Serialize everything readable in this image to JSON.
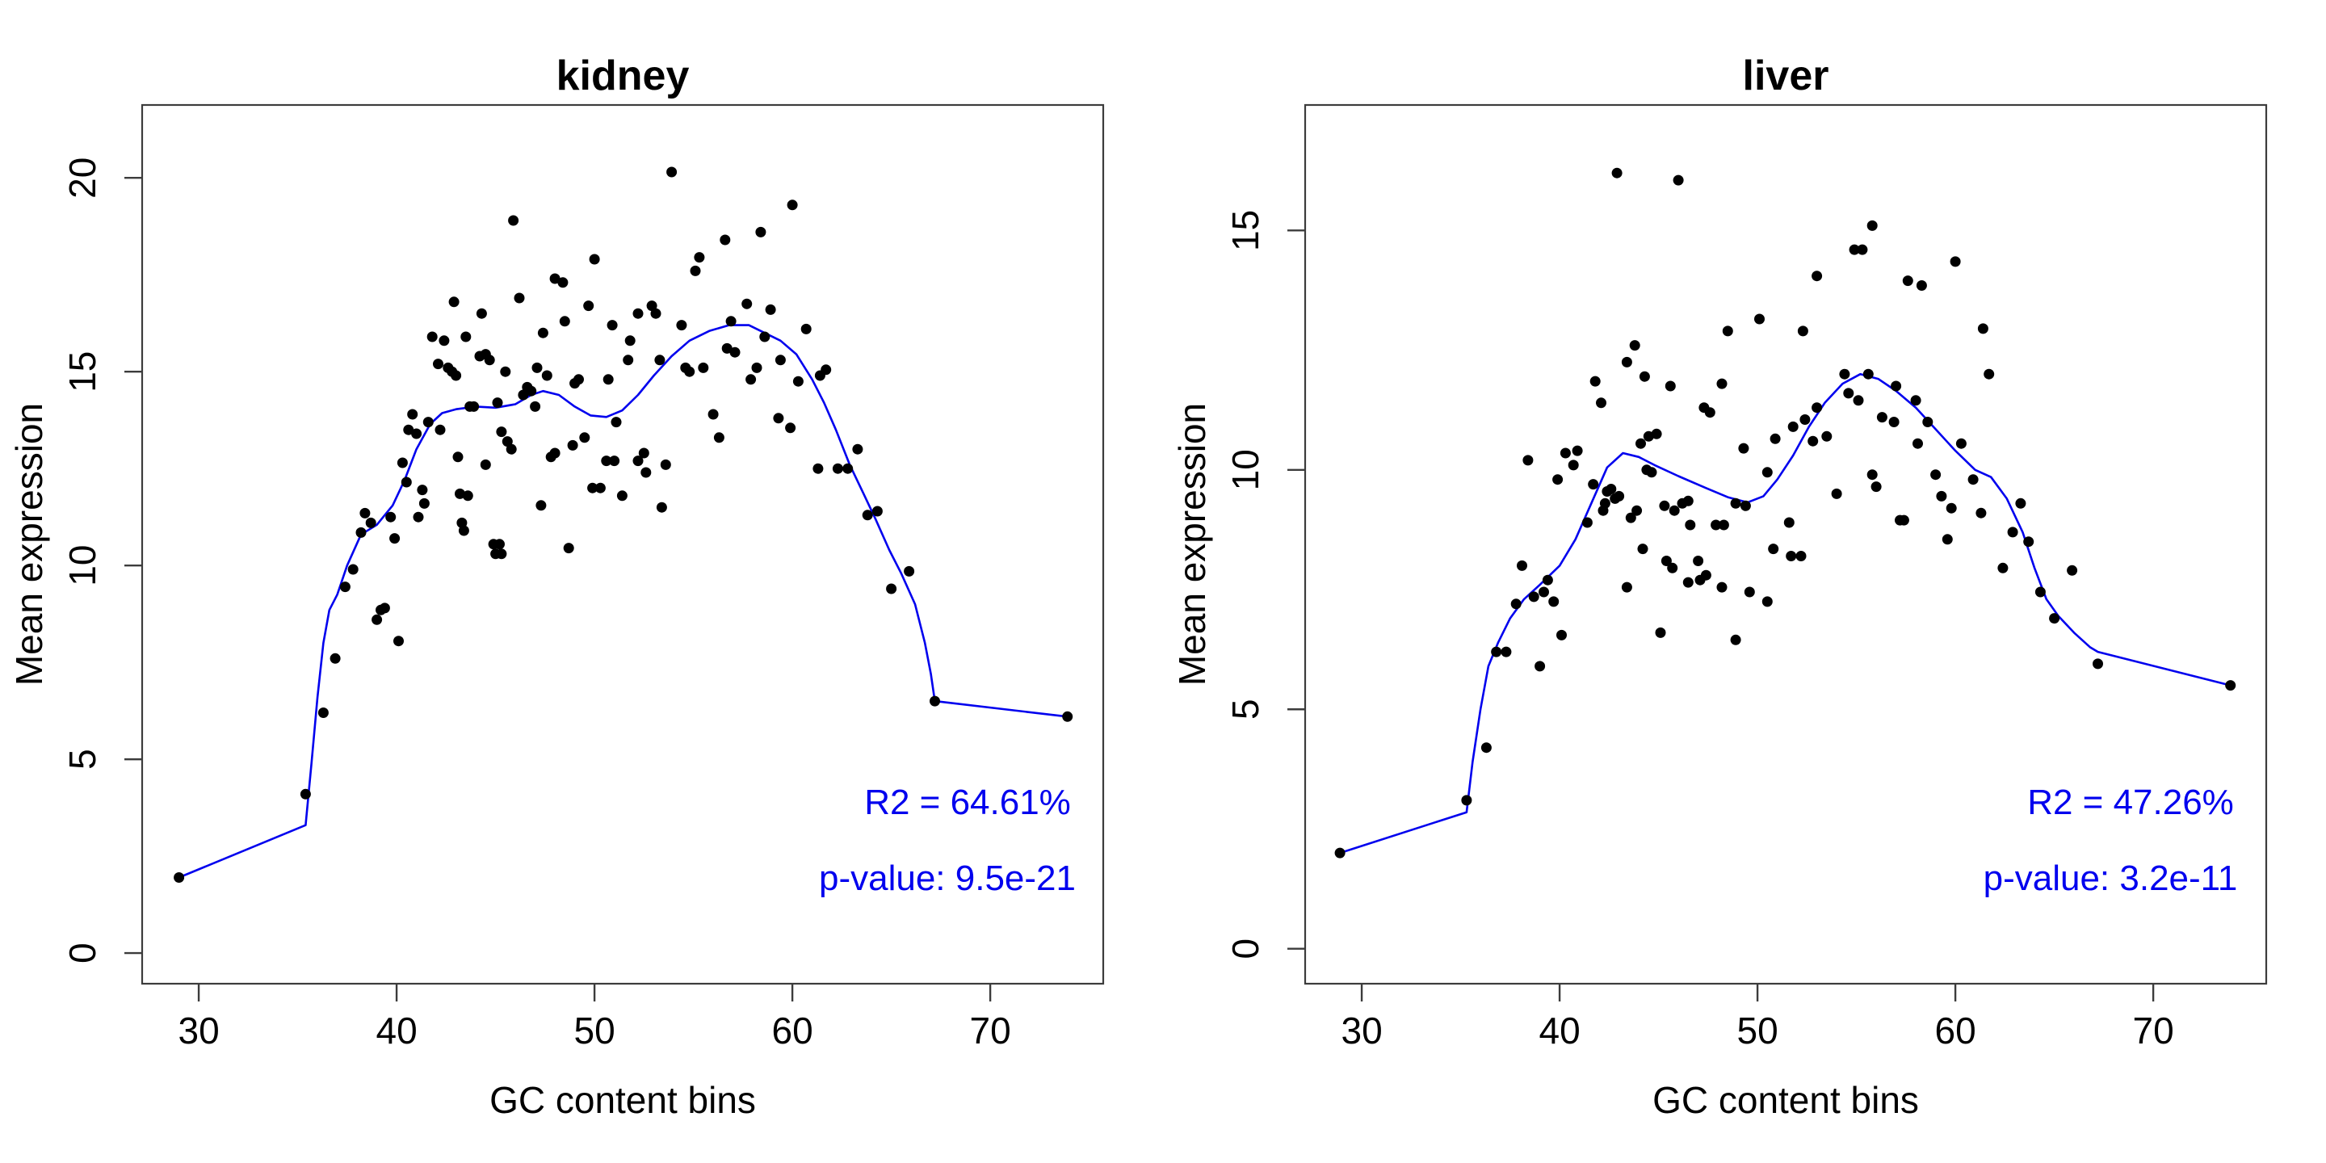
{
  "colors": {
    "point": "#000000",
    "curve": "#0000ee",
    "annotation": "#0000ee",
    "axis": "#3c3c3c",
    "text": "#000000",
    "background": "#ffffff"
  },
  "chart_data": [
    {
      "type": "scatter",
      "title": "kidney",
      "xlabel": "GC content bins",
      "ylabel": "Mean expression",
      "xlim": [
        27.14,
        75.71
      ],
      "ylim": [
        -0.79,
        21.88
      ],
      "x_ticks": [
        30,
        40,
        50,
        60,
        70
      ],
      "y_ticks": [
        0,
        5,
        10,
        15,
        20
      ],
      "grid": false,
      "legend": "none",
      "annotations": {
        "r2_label": "R2 = 64.61%",
        "p_value_label": "p-value: 9.5e-21"
      },
      "points": [
        [
          29,
          1.95
        ],
        [
          35.4,
          4.1
        ],
        [
          36.3,
          6.2
        ],
        [
          36.9,
          7.6
        ],
        [
          37.4,
          9.45
        ],
        [
          37.8,
          9.9
        ],
        [
          38.2,
          10.85
        ],
        [
          38.4,
          11.35
        ],
        [
          38.7,
          11.1
        ],
        [
          39.0,
          8.6
        ],
        [
          39.2,
          8.85
        ],
        [
          39.4,
          8.9
        ],
        [
          39.7,
          11.25
        ],
        [
          39.9,
          10.7
        ],
        [
          40.1,
          8.05
        ],
        [
          40.3,
          12.65
        ],
        [
          40.5,
          12.15
        ],
        [
          40.6,
          13.5
        ],
        [
          41.0,
          13.4
        ],
        [
          40.8,
          13.9
        ],
        [
          41.1,
          11.25
        ],
        [
          41.3,
          11.95
        ],
        [
          41.4,
          11.6
        ],
        [
          41.6,
          13.7
        ],
        [
          41.8,
          15.9
        ],
        [
          42.1,
          15.2
        ],
        [
          42.2,
          13.5
        ],
        [
          42.4,
          15.8
        ],
        [
          42.6,
          15.1
        ],
        [
          42.8,
          15.0
        ],
        [
          43.0,
          14.9
        ],
        [
          42.9,
          16.8
        ],
        [
          43.1,
          12.8
        ],
        [
          43.2,
          11.85
        ],
        [
          43.3,
          11.1
        ],
        [
          43.4,
          10.9
        ],
        [
          43.6,
          11.8
        ],
        [
          43.5,
          15.9
        ],
        [
          43.7,
          14.1
        ],
        [
          43.9,
          14.1
        ],
        [
          44.2,
          15.4
        ],
        [
          44.5,
          15.45
        ],
        [
          44.7,
          15.3
        ],
        [
          44.3,
          16.5
        ],
        [
          44.5,
          12.6
        ],
        [
          44.9,
          10.55
        ],
        [
          45.2,
          10.55
        ],
        [
          45.0,
          10.3
        ],
        [
          45.3,
          10.3
        ],
        [
          45.1,
          14.2
        ],
        [
          45.3,
          13.45
        ],
        [
          45.5,
          15.0
        ],
        [
          45.6,
          13.2
        ],
        [
          45.8,
          13.0
        ],
        [
          45.9,
          18.9
        ],
        [
          46.2,
          16.9
        ],
        [
          46.4,
          14.4
        ],
        [
          46.6,
          14.6
        ],
        [
          46.8,
          14.5
        ],
        [
          47.0,
          14.1
        ],
        [
          47.1,
          15.1
        ],
        [
          47.3,
          11.55
        ],
        [
          47.4,
          16.0
        ],
        [
          47.6,
          14.9
        ],
        [
          47.8,
          12.8
        ],
        [
          48.0,
          12.9
        ],
        [
          48.0,
          17.4
        ],
        [
          48.4,
          17.3
        ],
        [
          48.5,
          16.3
        ],
        [
          48.7,
          10.45
        ],
        [
          48.9,
          13.1
        ],
        [
          49.0,
          14.7
        ],
        [
          49.2,
          14.8
        ],
        [
          49.5,
          13.3
        ],
        [
          49.7,
          16.7
        ],
        [
          49.9,
          12.0
        ],
        [
          50.0,
          17.9
        ],
        [
          50.3,
          12.0
        ],
        [
          50.6,
          12.7
        ],
        [
          50.7,
          14.8
        ],
        [
          50.9,
          16.2
        ],
        [
          51.0,
          12.7
        ],
        [
          51.1,
          13.7
        ],
        [
          51.4,
          11.8
        ],
        [
          51.7,
          15.3
        ],
        [
          51.8,
          15.8
        ],
        [
          52.2,
          12.7
        ],
        [
          52.2,
          16.5
        ],
        [
          52.5,
          12.9
        ],
        [
          52.6,
          12.4
        ],
        [
          52.9,
          16.7
        ],
        [
          53.1,
          16.5
        ],
        [
          53.3,
          15.3
        ],
        [
          53.4,
          11.5
        ],
        [
          53.6,
          12.6
        ],
        [
          53.9,
          20.15
        ],
        [
          54.4,
          16.2
        ],
        [
          54.6,
          15.1
        ],
        [
          54.8,
          15.0
        ],
        [
          55.1,
          17.6
        ],
        [
          55.3,
          17.95
        ],
        [
          55.5,
          15.1
        ],
        [
          56.0,
          13.9
        ],
        [
          56.3,
          13.3
        ],
        [
          56.6,
          18.4
        ],
        [
          56.7,
          15.6
        ],
        [
          56.9,
          16.3
        ],
        [
          57.1,
          15.5
        ],
        [
          57.7,
          16.75
        ],
        [
          57.9,
          14.8
        ],
        [
          58.2,
          15.1
        ],
        [
          58.4,
          18.6
        ],
        [
          58.6,
          15.9
        ],
        [
          58.9,
          16.6
        ],
        [
          59.3,
          13.8
        ],
        [
          59.4,
          15.3
        ],
        [
          59.9,
          13.55
        ],
        [
          60.0,
          19.3
        ],
        [
          60.3,
          14.75
        ],
        [
          60.7,
          16.1
        ],
        [
          61.3,
          12.5
        ],
        [
          61.4,
          14.9
        ],
        [
          61.7,
          15.05
        ],
        [
          62.3,
          12.5
        ],
        [
          62.8,
          12.5
        ],
        [
          63.3,
          13.0
        ],
        [
          63.8,
          11.3
        ],
        [
          64.3,
          11.4
        ],
        [
          65.0,
          9.4
        ],
        [
          65.9,
          9.85
        ],
        [
          67.2,
          6.5
        ],
        [
          73.9,
          6.1
        ]
      ],
      "curve": [
        [
          29,
          1.95
        ],
        [
          35.4,
          3.3
        ],
        [
          35.7,
          4.9
        ],
        [
          36.0,
          6.6
        ],
        [
          36.3,
          8.0
        ],
        [
          36.6,
          8.85
        ],
        [
          37.0,
          9.25
        ],
        [
          37.5,
          10.0
        ],
        [
          38.2,
          10.8
        ],
        [
          39.0,
          11.05
        ],
        [
          39.8,
          11.55
        ],
        [
          40.4,
          12.2
        ],
        [
          41.0,
          13.0
        ],
        [
          41.7,
          13.65
        ],
        [
          42.3,
          13.93
        ],
        [
          43.0,
          14.03
        ],
        [
          44.0,
          14.1
        ],
        [
          45.0,
          14.07
        ],
        [
          46.0,
          14.16
        ],
        [
          46.8,
          14.4
        ],
        [
          47.4,
          14.5
        ],
        [
          48.2,
          14.4
        ],
        [
          49.0,
          14.1
        ],
        [
          49.8,
          13.87
        ],
        [
          50.6,
          13.83
        ],
        [
          51.4,
          14.0
        ],
        [
          52.2,
          14.4
        ],
        [
          53.0,
          14.9
        ],
        [
          53.9,
          15.4
        ],
        [
          54.8,
          15.8
        ],
        [
          55.8,
          16.05
        ],
        [
          56.8,
          16.2
        ],
        [
          57.8,
          16.2
        ],
        [
          58.6,
          16.0
        ],
        [
          59.4,
          15.8
        ],
        [
          60.2,
          15.45
        ],
        [
          61.0,
          14.8
        ],
        [
          61.6,
          14.2
        ],
        [
          62.2,
          13.5
        ],
        [
          62.9,
          12.6
        ],
        [
          63.6,
          11.85
        ],
        [
          64.2,
          11.2
        ],
        [
          64.9,
          10.4
        ],
        [
          65.5,
          9.8
        ],
        [
          66.2,
          9.0
        ],
        [
          66.7,
          8.0
        ],
        [
          67.0,
          7.2
        ],
        [
          67.2,
          6.5
        ],
        [
          73.9,
          6.1
        ]
      ]
    },
    {
      "type": "scatter",
      "title": "liver",
      "xlabel": "GC content bins",
      "ylabel": "Mean expression",
      "xlim": [
        27.14,
        75.71
      ],
      "ylim": [
        -0.73,
        17.62
      ],
      "x_ticks": [
        30,
        40,
        50,
        60,
        70
      ],
      "y_ticks": [
        0,
        5,
        10,
        15
      ],
      "grid": false,
      "legend": "none",
      "annotations": {
        "r2_label": "R2 = 47.26%",
        "p_value_label": "p-value: 3.2e-11"
      },
      "points": [
        [
          28.9,
          2.0
        ],
        [
          35.3,
          3.1
        ],
        [
          36.3,
          4.2
        ],
        [
          36.8,
          6.2
        ],
        [
          37.3,
          6.2
        ],
        [
          37.8,
          7.2
        ],
        [
          38.1,
          8.0
        ],
        [
          38.7,
          7.35
        ],
        [
          39.0,
          5.9
        ],
        [
          39.2,
          7.45
        ],
        [
          39.4,
          7.7
        ],
        [
          39.7,
          7.25
        ],
        [
          40.1,
          6.55
        ],
        [
          43.4,
          7.55
        ],
        [
          44.2,
          8.35
        ],
        [
          45.1,
          6.6
        ],
        [
          45.4,
          8.1
        ],
        [
          45.7,
          7.95
        ],
        [
          46.5,
          7.65
        ],
        [
          47.0,
          8.1
        ],
        [
          47.1,
          7.7
        ],
        [
          47.4,
          7.8
        ],
        [
          48.2,
          7.55
        ],
        [
          48.9,
          6.45
        ],
        [
          49.6,
          7.45
        ],
        [
          50.5,
          7.25
        ],
        [
          50.8,
          8.35
        ],
        [
          51.7,
          8.2
        ],
        [
          52.2,
          8.2
        ],
        [
          38.4,
          10.2
        ],
        [
          39.9,
          9.8
        ],
        [
          40.3,
          10.35
        ],
        [
          40.7,
          10.1
        ],
        [
          40.9,
          10.4
        ],
        [
          41.4,
          8.9
        ],
        [
          41.7,
          9.7
        ],
        [
          41.8,
          11.85
        ],
        [
          42.1,
          11.4
        ],
        [
          42.3,
          9.3
        ],
        [
          42.4,
          9.55
        ],
        [
          42.6,
          9.6
        ],
        [
          42.8,
          9.4
        ],
        [
          42.2,
          9.15
        ],
        [
          43.0,
          9.45
        ],
        [
          43.6,
          9.0
        ],
        [
          43.9,
          9.15
        ],
        [
          44.4,
          10.0
        ],
        [
          44.65,
          9.95
        ],
        [
          44.1,
          10.55
        ],
        [
          44.5,
          10.7
        ],
        [
          44.9,
          10.75
        ],
        [
          45.3,
          9.25
        ],
        [
          45.8,
          9.15
        ],
        [
          46.2,
          9.3
        ],
        [
          46.5,
          9.35
        ],
        [
          46.6,
          8.85
        ],
        [
          47.9,
          8.85
        ],
        [
          48.3,
          8.85
        ],
        [
          48.9,
          9.3
        ],
        [
          49.4,
          9.25
        ],
        [
          50.5,
          9.95
        ],
        [
          51.6,
          8.9
        ],
        [
          51.8,
          10.9
        ],
        [
          52.4,
          11.05
        ],
        [
          52.8,
          10.6
        ],
        [
          53.5,
          10.7
        ],
        [
          54.0,
          9.5
        ],
        [
          55.8,
          9.9
        ],
        [
          56.0,
          9.65
        ],
        [
          57.2,
          8.95
        ],
        [
          42.9,
          16.2
        ],
        [
          46.0,
          16.05
        ],
        [
          43.8,
          12.6
        ],
        [
          43.4,
          12.25
        ],
        [
          44.3,
          11.95
        ],
        [
          45.6,
          11.75
        ],
        [
          47.3,
          11.3
        ],
        [
          47.6,
          11.2
        ],
        [
          48.2,
          11.8
        ],
        [
          48.5,
          12.9
        ],
        [
          49.3,
          10.45
        ],
        [
          50.1,
          13.15
        ],
        [
          50.9,
          10.65
        ],
        [
          53.0,
          11.3
        ],
        [
          52.3,
          12.9
        ],
        [
          53.0,
          14.05
        ],
        [
          54.4,
          12.0
        ],
        [
          54.6,
          11.6
        ],
        [
          54.9,
          14.6
        ],
        [
          55.1,
          11.45
        ],
        [
          55.3,
          14.6
        ],
        [
          55.6,
          12.0
        ],
        [
          55.8,
          15.1
        ],
        [
          56.3,
          11.1
        ],
        [
          56.9,
          11.0
        ],
        [
          57.0,
          11.75
        ],
        [
          57.4,
          8.95
        ],
        [
          57.6,
          13.95
        ],
        [
          58.0,
          11.45
        ],
        [
          58.1,
          10.55
        ],
        [
          58.3,
          13.85
        ],
        [
          58.6,
          11.0
        ],
        [
          59.0,
          9.9
        ],
        [
          59.3,
          9.45
        ],
        [
          59.6,
          8.55
        ],
        [
          59.8,
          9.2
        ],
        [
          60.0,
          14.35
        ],
        [
          60.3,
          10.55
        ],
        [
          60.9,
          9.8
        ],
        [
          61.3,
          9.1
        ],
        [
          61.4,
          12.95
        ],
        [
          61.7,
          12.0
        ],
        [
          62.4,
          7.95
        ],
        [
          62.9,
          8.7
        ],
        [
          63.3,
          9.3
        ],
        [
          63.7,
          8.5
        ],
        [
          64.3,
          7.45
        ],
        [
          65.0,
          6.9
        ],
        [
          65.9,
          7.9
        ],
        [
          67.2,
          5.95
        ],
        [
          73.9,
          5.5
        ]
      ],
      "curve": [
        [
          28.9,
          2.0
        ],
        [
          35.3,
          2.85
        ],
        [
          35.6,
          3.9
        ],
        [
          36.0,
          5.0
        ],
        [
          36.4,
          5.9
        ],
        [
          36.9,
          6.4
        ],
        [
          37.5,
          6.9
        ],
        [
          38.2,
          7.3
        ],
        [
          39.0,
          7.6
        ],
        [
          40.0,
          8.0
        ],
        [
          40.8,
          8.55
        ],
        [
          41.6,
          9.3
        ],
        [
          42.4,
          10.05
        ],
        [
          43.2,
          10.35
        ],
        [
          44.0,
          10.27
        ],
        [
          44.8,
          10.1
        ],
        [
          46.0,
          9.87
        ],
        [
          47.4,
          9.62
        ],
        [
          48.5,
          9.43
        ],
        [
          49.5,
          9.32
        ],
        [
          50.3,
          9.45
        ],
        [
          51.0,
          9.8
        ],
        [
          51.8,
          10.3
        ],
        [
          52.6,
          10.9
        ],
        [
          53.4,
          11.4
        ],
        [
          54.3,
          11.8
        ],
        [
          55.2,
          12.0
        ],
        [
          56.1,
          11.9
        ],
        [
          57.0,
          11.65
        ],
        [
          58.0,
          11.3
        ],
        [
          59.0,
          10.85
        ],
        [
          60.0,
          10.4
        ],
        [
          61.0,
          10.0
        ],
        [
          61.8,
          9.85
        ],
        [
          62.6,
          9.4
        ],
        [
          63.4,
          8.7
        ],
        [
          64.0,
          7.95
        ],
        [
          64.6,
          7.3
        ],
        [
          65.2,
          6.95
        ],
        [
          66.0,
          6.6
        ],
        [
          66.8,
          6.3
        ],
        [
          67.2,
          6.2
        ],
        [
          73.9,
          5.5
        ]
      ]
    }
  ]
}
